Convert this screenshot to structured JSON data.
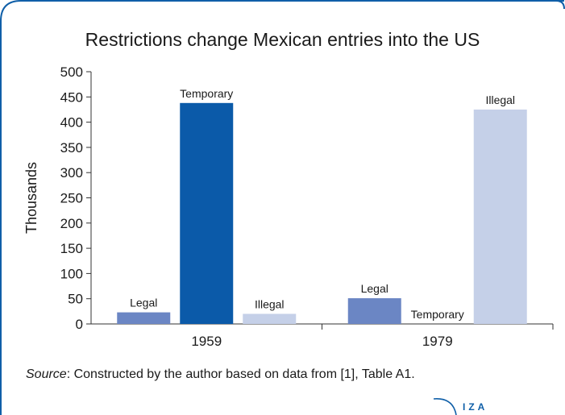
{
  "chart_data": {
    "type": "bar",
    "title": "Restrictions change Mexican entries into the US",
    "ylabel": "Thousands",
    "xlabel": "",
    "ylim": [
      0,
      500
    ],
    "yticks": [
      0,
      50,
      100,
      150,
      200,
      250,
      300,
      350,
      400,
      450,
      500
    ],
    "categories": [
      "1959",
      "1979"
    ],
    "series": [
      {
        "name": "Legal",
        "color": "#6b86c4",
        "values": [
          23,
          51
        ]
      },
      {
        "name": "Temporary",
        "color": "#0b5aa9",
        "values": [
          438,
          0
        ]
      },
      {
        "name": "Illegal",
        "color": "#c5d0e8",
        "values": [
          20,
          425
        ]
      }
    ]
  },
  "source": {
    "label": "Source",
    "text": ": Constructed by the author based on data from [1], Table A1."
  },
  "logo": {
    "text": "IZA"
  },
  "colors": {
    "frame": "#0f5fa8"
  }
}
